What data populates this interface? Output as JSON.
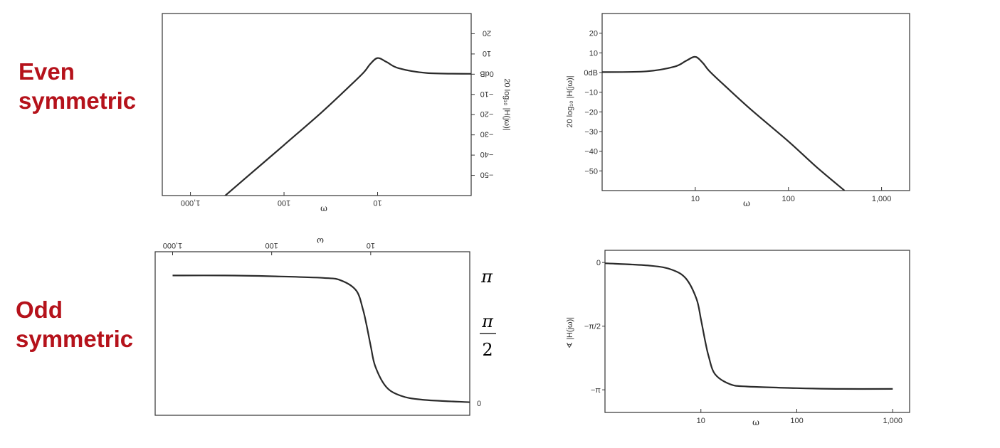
{
  "row_labels": {
    "even": [
      "Even",
      "symmetric"
    ],
    "odd": [
      "Odd",
      "symmetric"
    ]
  },
  "chart_data": [
    {
      "id": "even-mirrored",
      "type": "line",
      "mirrored": true,
      "x_scale": "log",
      "xlim": [
        1,
        2000
      ],
      "ylim": [
        -60,
        30
      ],
      "x_ticks": [
        {
          "value": 10,
          "label": "10"
        },
        {
          "value": 100,
          "label": "100"
        },
        {
          "value": 1000,
          "label": "1,000"
        }
      ],
      "y_ticks": [
        {
          "value": 20,
          "label": "20"
        },
        {
          "value": 10,
          "label": "10"
        },
        {
          "value": 0,
          "label": "0dB"
        },
        {
          "value": -10,
          "label": "−10"
        },
        {
          "value": -20,
          "label": "−20"
        },
        {
          "value": -30,
          "label": "−30"
        },
        {
          "value": -40,
          "label": "−40"
        },
        {
          "value": -50,
          "label": "−50"
        }
      ],
      "xlabel": "ω",
      "ylabel": "20 log₁₀ |H(jω)|",
      "x": [
        1,
        3,
        6,
        8,
        10,
        12,
        14,
        20,
        40,
        100,
        300,
        600
      ],
      "y": [
        0.2,
        0.6,
        3,
        6,
        8,
        5,
        1,
        -6,
        -19,
        -35,
        -54,
        -66
      ]
    },
    {
      "id": "even-normal",
      "type": "line",
      "mirrored": false,
      "x_scale": "log",
      "xlim": [
        1,
        2000
      ],
      "ylim": [
        -60,
        30
      ],
      "x_ticks": [
        {
          "value": 10,
          "label": "10"
        },
        {
          "value": 100,
          "label": "100"
        },
        {
          "value": 1000,
          "label": "1,000"
        }
      ],
      "y_ticks": [
        {
          "value": 20,
          "label": "20"
        },
        {
          "value": 10,
          "label": "10"
        },
        {
          "value": 0,
          "label": "0dB"
        },
        {
          "value": -10,
          "label": "−10"
        },
        {
          "value": -20,
          "label": "−20"
        },
        {
          "value": -30,
          "label": "−30"
        },
        {
          "value": -40,
          "label": "−40"
        },
        {
          "value": -50,
          "label": "−50"
        }
      ],
      "xlabel": "ω",
      "ylabel": "20 log₁₀ |H(jω)|",
      "x": [
        1,
        3,
        6,
        8,
        10,
        12,
        14,
        20,
        40,
        100,
        200,
        400
      ],
      "y": [
        0.2,
        0.6,
        3,
        6,
        8,
        5,
        1,
        -6,
        -19,
        -35,
        -48,
        -60
      ]
    },
    {
      "id": "odd-mirrored",
      "type": "line",
      "mirrored": true,
      "x_scale": "log",
      "xlim": [
        1,
        1500
      ],
      "ylim": [
        -0.3,
        3.7
      ],
      "x_ticks": [
        {
          "value": 10,
          "label": "10"
        },
        {
          "value": 100,
          "label": "100"
        },
        {
          "value": 1000,
          "label": "1,000"
        }
      ],
      "y_ticks": [
        {
          "value": 0,
          "label": "0"
        }
      ],
      "pi_labels": {
        "pi": "π",
        "half_num": "π",
        "half_den": "2"
      },
      "xlabel": "ω",
      "x": [
        1,
        3,
        5,
        7,
        9,
        10,
        11,
        12,
        14,
        20,
        30,
        100,
        300,
        1000
      ],
      "y": [
        0.02,
        0.08,
        0.18,
        0.4,
        0.9,
        1.4,
        1.9,
        2.3,
        2.75,
        3.0,
        3.06,
        3.1,
        3.12,
        3.12
      ]
    },
    {
      "id": "odd-normal",
      "type": "line",
      "mirrored": false,
      "x_scale": "log",
      "xlim": [
        1,
        1500
      ],
      "ylim": [
        -3.7,
        0.3
      ],
      "x_ticks": [
        {
          "value": 10,
          "label": "10"
        },
        {
          "value": 100,
          "label": "100"
        },
        {
          "value": 1000,
          "label": "1,000"
        }
      ],
      "y_ticks": [
        {
          "value": 0,
          "label": "0"
        },
        {
          "value": -1.5708,
          "label": "−π/2"
        },
        {
          "value": -3.1416,
          "label": "−π"
        }
      ],
      "xlabel": "ω",
      "ylabel": "∢ |H(jω)|",
      "x": [
        1,
        3,
        5,
        7,
        9,
        10,
        11,
        12,
        14,
        20,
        30,
        100,
        300,
        1000
      ],
      "y": [
        -0.02,
        -0.08,
        -0.18,
        -0.4,
        -0.9,
        -1.4,
        -1.9,
        -2.3,
        -2.75,
        -3.0,
        -3.06,
        -3.1,
        -3.12,
        -3.12
      ]
    }
  ]
}
